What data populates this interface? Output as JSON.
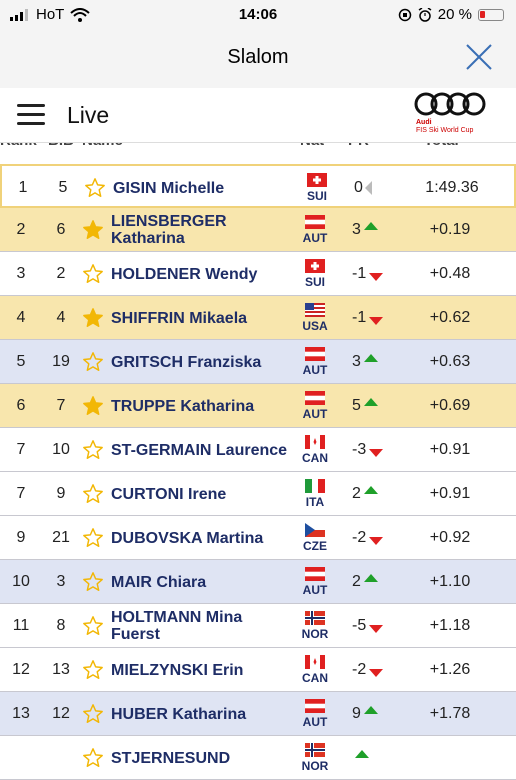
{
  "status": {
    "carrier": "HoT",
    "time": "14:06",
    "battery": "20 %"
  },
  "window": {
    "title": "Slalom"
  },
  "app": {
    "section": "Live",
    "logo_line1": "Audi",
    "logo_line2": "FIS Ski World Cup"
  },
  "columns": {
    "rank": "Rank",
    "bib": "BIB",
    "name": "Name",
    "nat": "Nat",
    "pr": "PR",
    "total": "Total"
  },
  "rows": [
    {
      "rank": "1",
      "bib": "5",
      "name": "GISIN Michelle",
      "nat": "SUI",
      "pr": "0",
      "trend": "zero",
      "total": "1:49.36",
      "fav": false,
      "style": "leader"
    },
    {
      "rank": "2",
      "bib": "6",
      "name": "LIENSBERGER Katharina",
      "nat": "AUT",
      "pr": "3",
      "trend": "up",
      "total": "+0.19",
      "fav": true,
      "style": "gold"
    },
    {
      "rank": "3",
      "bib": "2",
      "name": "HOLDENER Wendy",
      "nat": "SUI",
      "pr": "-1",
      "trend": "down",
      "total": "+0.48",
      "fav": false,
      "style": "white"
    },
    {
      "rank": "4",
      "bib": "4",
      "name": "SHIFFRIN Mikaela",
      "nat": "USA",
      "pr": "-1",
      "trend": "down",
      "total": "+0.62",
      "fav": true,
      "style": "gold"
    },
    {
      "rank": "5",
      "bib": "19",
      "name": "GRITSCH Franziska",
      "nat": "AUT",
      "pr": "3",
      "trend": "up",
      "total": "+0.63",
      "fav": false,
      "style": "blue"
    },
    {
      "rank": "6",
      "bib": "7",
      "name": "TRUPPE Katharina",
      "nat": "AUT",
      "pr": "5",
      "trend": "up",
      "total": "+0.69",
      "fav": true,
      "style": "gold"
    },
    {
      "rank": "7",
      "bib": "10",
      "name": "ST-GERMAIN Laurence",
      "nat": "CAN",
      "pr": "-3",
      "trend": "down",
      "total": "+0.91",
      "fav": false,
      "style": "white"
    },
    {
      "rank": "7",
      "bib": "9",
      "name": "CURTONI Irene",
      "nat": "ITA",
      "pr": "2",
      "trend": "up",
      "total": "+0.91",
      "fav": false,
      "style": "white"
    },
    {
      "rank": "9",
      "bib": "21",
      "name": "DUBOVSKA Martina",
      "nat": "CZE",
      "pr": "-2",
      "trend": "down",
      "total": "+0.92",
      "fav": false,
      "style": "white"
    },
    {
      "rank": "10",
      "bib": "3",
      "name": "MAIR Chiara",
      "nat": "AUT",
      "pr": "2",
      "trend": "up",
      "total": "+1.10",
      "fav": false,
      "style": "blue"
    },
    {
      "rank": "11",
      "bib": "8",
      "name": "HOLTMANN Mina Fuerst",
      "nat": "NOR",
      "pr": "-5",
      "trend": "down",
      "total": "+1.18",
      "fav": false,
      "style": "white"
    },
    {
      "rank": "12",
      "bib": "13",
      "name": "MIELZYNSKI Erin",
      "nat": "CAN",
      "pr": "-2",
      "trend": "down",
      "total": "+1.26",
      "fav": false,
      "style": "white"
    },
    {
      "rank": "13",
      "bib": "12",
      "name": "HUBER Katharina",
      "nat": "AUT",
      "pr": "9",
      "trend": "up",
      "total": "+1.78",
      "fav": false,
      "style": "blue"
    },
    {
      "rank": "",
      "bib": "",
      "name": "STJERNESUND",
      "nat": "NOR",
      "pr": "",
      "trend": "up",
      "total": "",
      "fav": false,
      "style": "white"
    }
  ],
  "colors": {
    "name": "#1e2d66",
    "gold_row": "#f8e6ad",
    "blue_row": "#dfe4f3",
    "up": "#1fa02a",
    "down": "#e02020"
  }
}
